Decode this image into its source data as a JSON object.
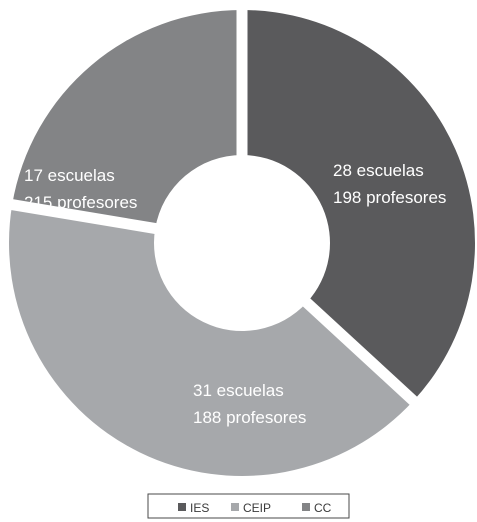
{
  "chart_data": {
    "type": "donut",
    "categories": [
      "IES",
      "CEIP",
      "CC"
    ],
    "colors": [
      "#5a5a5c",
      "#a6a8ab",
      "#838486"
    ],
    "series": [
      {
        "name": "escuelas",
        "values": [
          28,
          31,
          17
        ]
      },
      {
        "name": "profesores",
        "values": [
          198,
          188,
          215
        ]
      }
    ],
    "slice_labels": [
      {
        "line1": "28 escuelas",
        "line2": "198 profesores"
      },
      {
        "line1": "31 escuelas",
        "line2": "188 profesores"
      },
      {
        "line1": "17 escuelas",
        "line2": "215 profesores"
      }
    ],
    "start_angle_deg": 0,
    "legend": {
      "placement": "bottom",
      "items": [
        "IES",
        "CEIP",
        "CC"
      ]
    }
  }
}
